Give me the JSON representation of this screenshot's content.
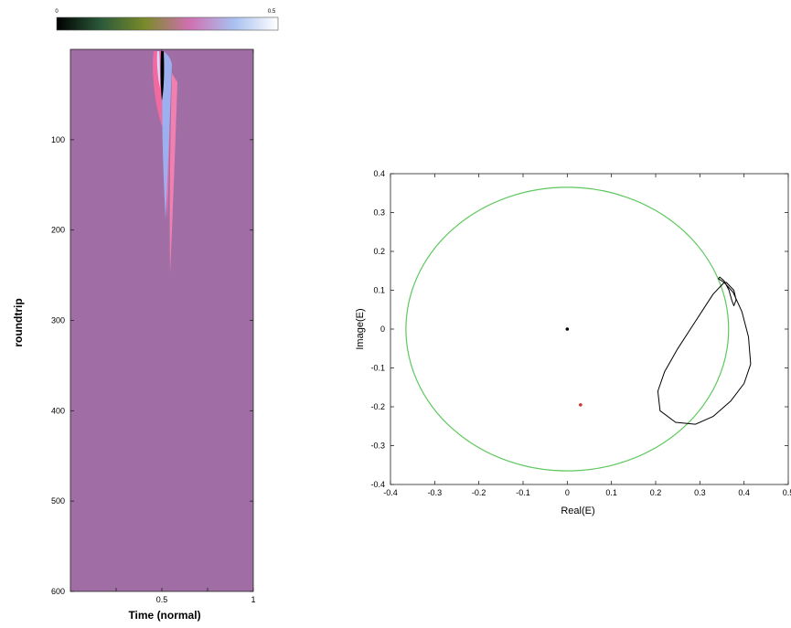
{
  "chart_data": [
    {
      "type": "heatmap",
      "xlabel": "Time (normal)",
      "ylabel": "roundtrip",
      "xlim": [
        0,
        1
      ],
      "ylim": [
        0,
        600
      ],
      "x_ticks": [
        "0.5",
        "1"
      ],
      "x_tick_values": [
        0.5,
        1
      ],
      "y_ticks": [
        "100",
        "200",
        "300",
        "400",
        "500",
        "600"
      ],
      "y_tick_values": [
        100,
        200,
        300,
        400,
        500,
        600
      ],
      "y_reversed": true,
      "colorbar": {
        "min_label": "0",
        "max_label": "0.5",
        "range": [
          0,
          0.5
        ],
        "colors": [
          "#000000",
          "#2b5a3a",
          "#7a8a2a",
          "#d070b0",
          "#a8c0f0",
          "#ffffff"
        ]
      },
      "background_color": "#a16da5"
    },
    {
      "type": "line",
      "xlabel": "Real(E)",
      "ylabel": "Image(E)",
      "xlim": [
        -0.4,
        0.5
      ],
      "ylim": [
        -0.4,
        0.4
      ],
      "x_ticks": [
        "-0.4",
        "-0.3",
        "-0.2",
        "-0.1",
        "0",
        "0.1",
        "0.2",
        "0.3",
        "0.4",
        "0.5"
      ],
      "x_tick_values": [
        -0.4,
        -0.3,
        -0.2,
        -0.1,
        0,
        0.1,
        0.2,
        0.3,
        0.4,
        0.5
      ],
      "y_ticks": [
        "0.4",
        "0.3",
        "0.2",
        "0.1",
        "0",
        "-0.1",
        "-0.2",
        "-0.3",
        "-0.4"
      ],
      "y_tick_values": [
        0.4,
        0.3,
        0.2,
        0.1,
        0,
        -0.1,
        -0.2,
        -0.3,
        -0.4
      ],
      "circle": {
        "center": [
          0,
          0
        ],
        "radius": 0.365,
        "color": "#5ec85e"
      },
      "trajectory": {
        "color": "#000000",
        "points": [
          [
            0.355,
            0.12
          ],
          [
            0.33,
            0.09
          ],
          [
            0.29,
            0.02
          ],
          [
            0.25,
            -0.05
          ],
          [
            0.22,
            -0.11
          ],
          [
            0.205,
            -0.16
          ],
          [
            0.21,
            -0.21
          ],
          [
            0.245,
            -0.24
          ],
          [
            0.29,
            -0.245
          ],
          [
            0.33,
            -0.225
          ],
          [
            0.37,
            -0.185
          ],
          [
            0.4,
            -0.14
          ],
          [
            0.415,
            -0.09
          ],
          [
            0.41,
            -0.02
          ],
          [
            0.395,
            0.045
          ],
          [
            0.375,
            0.095
          ],
          [
            0.355,
            0.12
          ],
          [
            0.342,
            0.13
          ],
          [
            0.345,
            0.134
          ],
          [
            0.355,
            0.124
          ],
          [
            0.366,
            0.1
          ],
          [
            0.372,
            0.075
          ],
          [
            0.377,
            0.06
          ],
          [
            0.382,
            0.075
          ],
          [
            0.377,
            0.1
          ],
          [
            0.36,
            0.12
          ],
          [
            0.355,
            0.12
          ]
        ]
      },
      "points": [
        {
          "x": 0,
          "y": 0,
          "color": "#000000"
        },
        {
          "x": 0.03,
          "y": -0.195,
          "color": "#d03030"
        }
      ]
    }
  ]
}
